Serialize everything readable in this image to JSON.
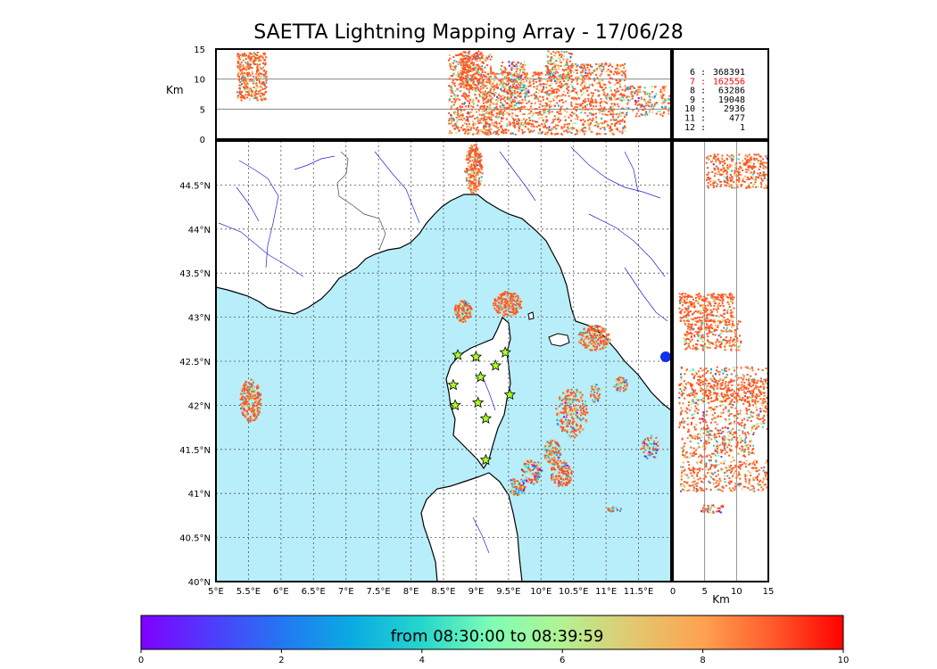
{
  "title": "SAETTA Lightning Mapping Array - 17/06/28",
  "colors": {
    "sea": "#b8eefa",
    "land": "#ffffff",
    "river": "#2222dd",
    "hot": "#ff5522",
    "station": "#aaff22"
  },
  "chart_data": {
    "type": "scatter",
    "subplots": {
      "altitude_profile": {
        "ylabel": "Km",
        "yticks": [
          "0",
          "5",
          "10",
          "15"
        ],
        "ylim": [
          0,
          15
        ]
      },
      "map": {
        "xticks": [
          "5°E",
          "5.5°E",
          "6°E",
          "6.5°E",
          "7°E",
          "7.5°E",
          "8°E",
          "8.5°E",
          "9°E",
          "9.5°E",
          "10°E",
          "10.5°E",
          "11°E",
          "11.5°E"
        ],
        "yticks": [
          "40°N",
          "40.5°N",
          "41°N",
          "41.5°N",
          "42°N",
          "42.5°N",
          "43°N",
          "43.5°N",
          "44°N",
          "44.5°N"
        ],
        "xlim": [
          5,
          12
        ],
        "ylim": [
          40,
          45
        ]
      },
      "altitude_side": {
        "xlabel": "Km",
        "xticks": [
          "0",
          "5",
          "10",
          "15"
        ],
        "xlim": [
          0,
          15
        ]
      }
    },
    "counts_legend": [
      {
        "key": "6",
        "value": "368391",
        "color": "#000000"
      },
      {
        "key": "7",
        "value": "162556",
        "color": "#ff0000"
      },
      {
        "key": "8",
        "value": "63286",
        "color": "#000000"
      },
      {
        "key": "9",
        "value": "19048",
        "color": "#000000"
      },
      {
        "key": "10",
        "value": "2936",
        "color": "#000000"
      },
      {
        "key": "11",
        "value": "477",
        "color": "#000000"
      },
      {
        "key": "12",
        "value": "1",
        "color": "#000000"
      }
    ],
    "stations": [
      {
        "lon": 8.72,
        "lat": 42.57
      },
      {
        "lon": 9.0,
        "lat": 42.55
      },
      {
        "lon": 9.3,
        "lat": 42.45
      },
      {
        "lon": 9.45,
        "lat": 42.6
      },
      {
        "lon": 9.07,
        "lat": 42.32
      },
      {
        "lon": 8.65,
        "lat": 42.23
      },
      {
        "lon": 9.52,
        "lat": 42.12
      },
      {
        "lon": 9.03,
        "lat": 42.03
      },
      {
        "lon": 8.68,
        "lat": 42.0
      },
      {
        "lon": 9.15,
        "lat": 41.85
      },
      {
        "lon": 9.15,
        "lat": 41.38
      }
    ],
    "colorbar": {
      "label": "from 08:30:00 to 08:39:59",
      "ticks": [
        "0",
        "2",
        "4",
        "6",
        "8",
        "10"
      ],
      "range": [
        0,
        10
      ]
    }
  }
}
